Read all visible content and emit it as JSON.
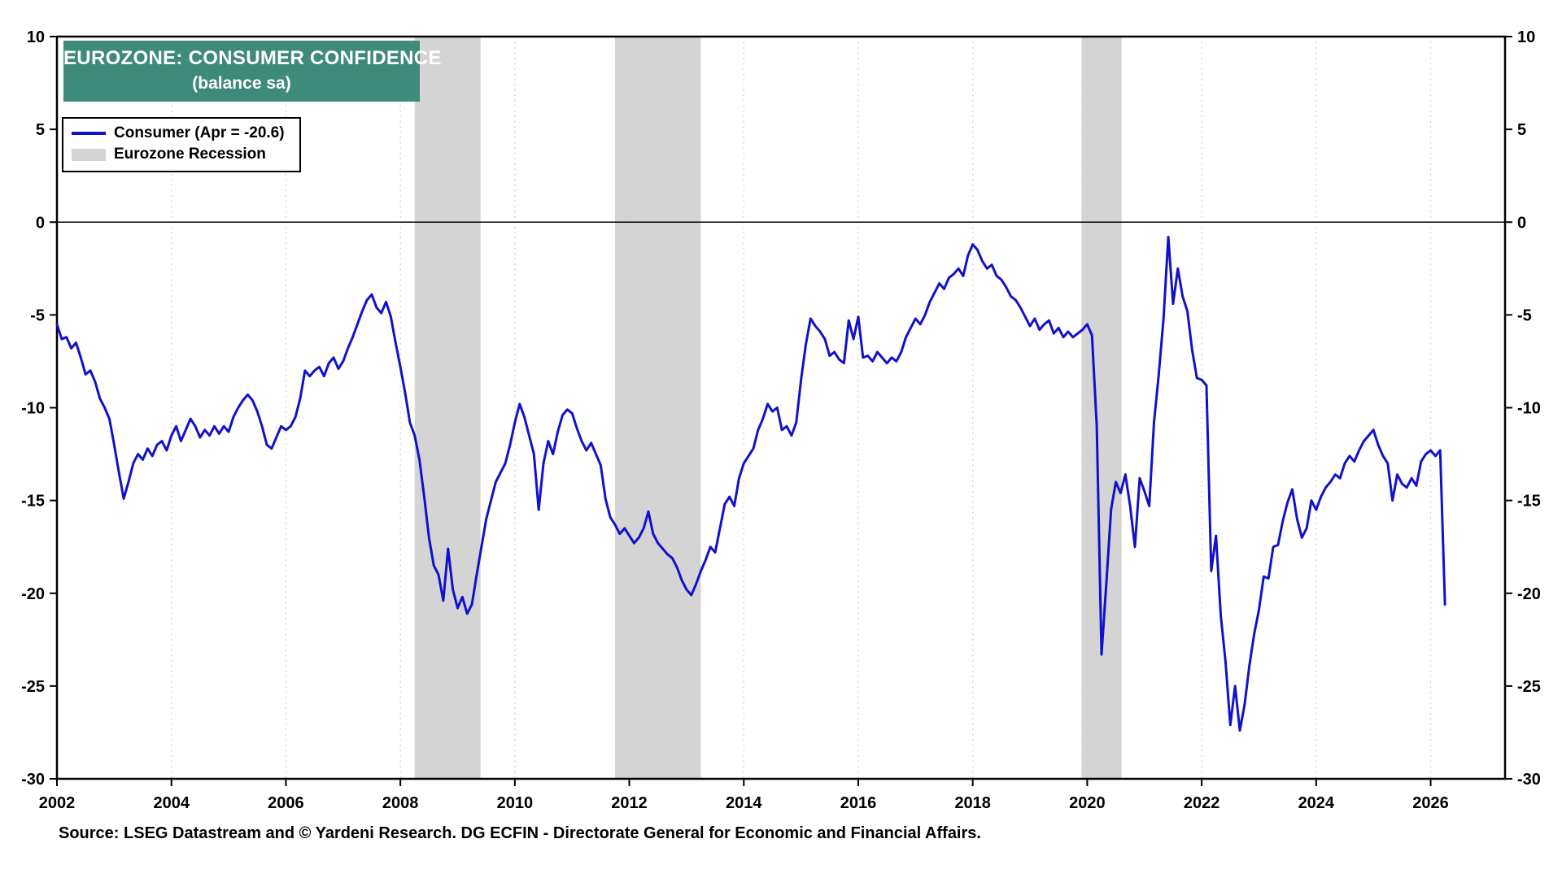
{
  "title": {
    "line1": "EUROZONE: CONSUMER CONFIDENCE",
    "line2": "(balance sa)"
  },
  "legend": {
    "consumer_label": "Consumer (Apr = -20.6)",
    "recession_label": "Eurozone Recession"
  },
  "source": "Source: LSEG Datastream and © Yardeni Research. DG ECFIN - Directorate General for Economic and Financial Affairs.",
  "colors": {
    "line": "#1111CC",
    "recession": "#D4D4D4",
    "title_bg": "#3E8A7B",
    "title_text": "#FFFFFF",
    "grid": "#C8C8C8",
    "axis": "#000000"
  },
  "chart_data": {
    "type": "line",
    "title": "EUROZONE: CONSUMER CONFIDENCE",
    "subtitle": "(balance sa)",
    "xlabel": "",
    "ylabel": "",
    "ylim": [
      -30,
      10
    ],
    "xlim": [
      2002,
      2027.3
    ],
    "yticks": [
      10,
      5,
      0,
      -5,
      -10,
      -15,
      -20,
      -25,
      -30
    ],
    "xticks": [
      2002,
      2004,
      2006,
      2008,
      2010,
      2012,
      2014,
      2016,
      2018,
      2020,
      2022,
      2024,
      2026
    ],
    "grid": "vertical-dotted",
    "zero_line": 0,
    "legend_position": "top-left",
    "recession_bands": [
      [
        2008.25,
        2009.4
      ],
      [
        2011.75,
        2013.25
      ],
      [
        2019.9,
        2020.6
      ]
    ],
    "series": [
      {
        "name": "Consumer (Apr = -20.6)",
        "start": {
          "year": 2002,
          "month": 1
        },
        "frequency": "monthly",
        "last_point": {
          "label": "Apr",
          "value": -20.6
        },
        "values": [
          -5.5,
          -6.3,
          -6.2,
          -6.8,
          -6.5,
          -7.3,
          -8.2,
          -8.0,
          -8.6,
          -9.5,
          -10.0,
          -10.6,
          -12.0,
          -13.5,
          -14.9,
          -14.0,
          -13.0,
          -12.5,
          -12.8,
          -12.2,
          -12.6,
          -12.0,
          -11.8,
          -12.3,
          -11.5,
          -11.0,
          -11.8,
          -11.2,
          -10.6,
          -11.0,
          -11.6,
          -11.2,
          -11.5,
          -11.0,
          -11.4,
          -11.0,
          -11.3,
          -10.5,
          -10.0,
          -9.6,
          -9.3,
          -9.6,
          -10.2,
          -11.0,
          -12.0,
          -12.2,
          -11.6,
          -11.0,
          -11.2,
          -11.0,
          -10.5,
          -9.5,
          -8.0,
          -8.3,
          -8.0,
          -7.8,
          -8.3,
          -7.6,
          -7.3,
          -7.9,
          -7.5,
          -6.8,
          -6.2,
          -5.5,
          -4.8,
          -4.2,
          -3.9,
          -4.6,
          -4.9,
          -4.3,
          -5.1,
          -6.5,
          -7.8,
          -9.2,
          -10.8,
          -11.5,
          -12.8,
          -14.8,
          -17.0,
          -18.5,
          -19.0,
          -20.4,
          -17.6,
          -19.8,
          -20.8,
          -20.2,
          -21.1,
          -20.6,
          -19.0,
          -17.5,
          -16.0,
          -15.0,
          -14.0,
          -13.5,
          -13.0,
          -12.0,
          -10.8,
          -9.8,
          -10.5,
          -11.5,
          -12.5,
          -15.5,
          -13.0,
          -11.8,
          -12.5,
          -11.3,
          -10.4,
          -10.1,
          -10.3,
          -11.1,
          -11.8,
          -12.3,
          -11.9,
          -12.5,
          -13.1,
          -14.9,
          -15.9,
          -16.3,
          -16.8,
          -16.5,
          -16.9,
          -17.3,
          -17.0,
          -16.5,
          -15.6,
          -16.8,
          -17.3,
          -17.6,
          -17.9,
          -18.1,
          -18.6,
          -19.3,
          -19.8,
          -20.1,
          -19.5,
          -18.8,
          -18.2,
          -17.5,
          -17.8,
          -16.5,
          -15.2,
          -14.8,
          -15.3,
          -13.8,
          -13.0,
          -12.6,
          -12.2,
          -11.2,
          -10.6,
          -9.8,
          -10.2,
          -10.0,
          -11.2,
          -11.0,
          -11.5,
          -10.8,
          -8.5,
          -6.6,
          -5.2,
          -5.6,
          -5.9,
          -6.3,
          -7.2,
          -7.0,
          -7.4,
          -7.6,
          -5.3,
          -6.3,
          -5.1,
          -7.3,
          -7.2,
          -7.5,
          -7.0,
          -7.3,
          -7.6,
          -7.3,
          -7.5,
          -7.0,
          -6.2,
          -5.7,
          -5.2,
          -5.5,
          -5.0,
          -4.3,
          -3.8,
          -3.3,
          -3.6,
          -3.0,
          -2.8,
          -2.5,
          -2.9,
          -1.8,
          -1.2,
          -1.5,
          -2.1,
          -2.5,
          -2.3,
          -2.9,
          -3.1,
          -3.5,
          -4.0,
          -4.2,
          -4.6,
          -5.1,
          -5.6,
          -5.2,
          -5.8,
          -5.5,
          -5.3,
          -6.0,
          -5.7,
          -6.2,
          -5.9,
          -6.2,
          -6.0,
          -5.8,
          -5.5,
          -6.1,
          -11.0,
          -23.3,
          -19.5,
          -15.5,
          -14.0,
          -14.6,
          -13.6,
          -15.3,
          -17.5,
          -13.8,
          -14.5,
          -15.3,
          -10.8,
          -8.2,
          -5.2,
          -0.8,
          -4.4,
          -2.5,
          -4.0,
          -4.8,
          -6.9,
          -8.4,
          -8.5,
          -8.8,
          -18.8,
          -16.9,
          -21.2,
          -23.7,
          -27.1,
          -25.0,
          -27.4,
          -26.0,
          -23.9,
          -22.2,
          -20.9,
          -19.1,
          -19.2,
          -17.5,
          -17.4,
          -16.1,
          -15.1,
          -14.4,
          -16.0,
          -17.0,
          -16.5,
          -15.0,
          -15.5,
          -14.8,
          -14.3,
          -14.0,
          -13.6,
          -13.8,
          -13.0,
          -12.6,
          -12.9,
          -12.3,
          -11.8,
          -11.5,
          -11.2,
          -12.0,
          -12.6,
          -13.0,
          -15.0,
          -13.6,
          -14.1,
          -14.3,
          -13.8,
          -14.2,
          -12.9,
          -12.5,
          -12.3,
          -12.6,
          -12.3,
          -20.6
        ]
      }
    ]
  }
}
